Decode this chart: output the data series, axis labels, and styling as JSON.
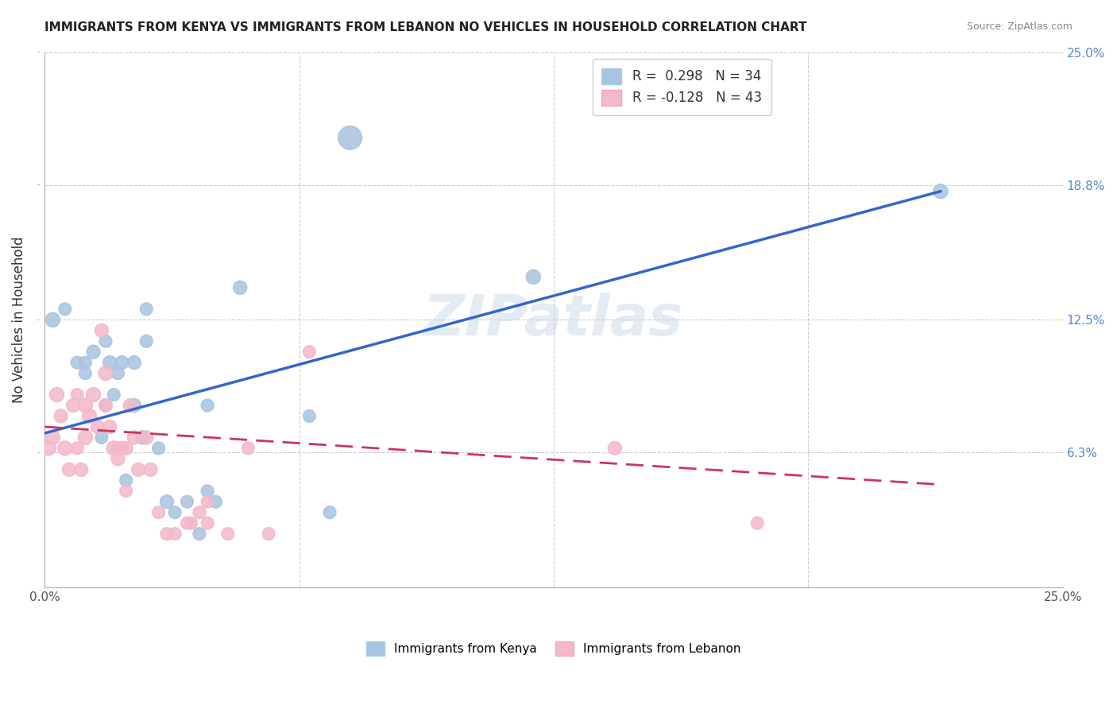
{
  "title": "IMMIGRANTS FROM KENYA VS IMMIGRANTS FROM LEBANON NO VEHICLES IN HOUSEHOLD CORRELATION CHART",
  "source": "Source: ZipAtlas.com",
  "xlabel": "",
  "ylabel": "No Vehicles in Household",
  "xmin": 0.0,
  "xmax": 0.25,
  "ymin": 0.0,
  "ymax": 0.25,
  "yticks": [
    0.0,
    0.063,
    0.125,
    0.188,
    0.25
  ],
  "ytick_labels": [
    "",
    "6.3%",
    "12.5%",
    "18.8%",
    "25.0%"
  ],
  "xtick_labels": [
    "0.0%",
    "25.0%"
  ],
  "legend_kenya": "R =  0.298   N = 34",
  "legend_lebanon": "R = -0.128   N = 43",
  "kenya_color": "#a8c4e0",
  "lebanon_color": "#f4b8c8",
  "kenya_line_color": "#3366cc",
  "lebanon_line_color": "#cc3366",
  "watermark": "ZIPatlas",
  "kenya_scatter_x": [
    0.002,
    0.005,
    0.008,
    0.01,
    0.01,
    0.012,
    0.014,
    0.015,
    0.015,
    0.016,
    0.017,
    0.018,
    0.018,
    0.019,
    0.02,
    0.022,
    0.022,
    0.024,
    0.025,
    0.025,
    0.028,
    0.03,
    0.032,
    0.035,
    0.038,
    0.04,
    0.04,
    0.042,
    0.048,
    0.065,
    0.07,
    0.075,
    0.12,
    0.22
  ],
  "kenya_scatter_y": [
    0.125,
    0.13,
    0.105,
    0.1,
    0.105,
    0.11,
    0.07,
    0.085,
    0.115,
    0.105,
    0.09,
    0.065,
    0.1,
    0.105,
    0.05,
    0.085,
    0.105,
    0.07,
    0.115,
    0.13,
    0.065,
    0.04,
    0.035,
    0.04,
    0.025,
    0.085,
    0.045,
    0.04,
    0.14,
    0.08,
    0.035,
    0.21,
    0.145,
    0.185
  ],
  "kenya_scatter_sizes": [
    80,
    60,
    60,
    60,
    60,
    70,
    60,
    60,
    60,
    70,
    60,
    60,
    60,
    70,
    60,
    70,
    70,
    70,
    60,
    60,
    60,
    70,
    60,
    60,
    60,
    60,
    60,
    60,
    70,
    60,
    60,
    220,
    80,
    80
  ],
  "lebanon_scatter_x": [
    0.001,
    0.002,
    0.003,
    0.004,
    0.005,
    0.006,
    0.007,
    0.008,
    0.008,
    0.009,
    0.01,
    0.01,
    0.011,
    0.012,
    0.013,
    0.014,
    0.015,
    0.015,
    0.016,
    0.017,
    0.018,
    0.019,
    0.02,
    0.02,
    0.021,
    0.022,
    0.023,
    0.025,
    0.026,
    0.028,
    0.03,
    0.032,
    0.035,
    0.036,
    0.038,
    0.04,
    0.04,
    0.045,
    0.05,
    0.055,
    0.065,
    0.14,
    0.175
  ],
  "lebanon_scatter_y": [
    0.065,
    0.07,
    0.09,
    0.08,
    0.065,
    0.055,
    0.085,
    0.065,
    0.09,
    0.055,
    0.07,
    0.085,
    0.08,
    0.09,
    0.075,
    0.12,
    0.085,
    0.1,
    0.075,
    0.065,
    0.06,
    0.065,
    0.045,
    0.065,
    0.085,
    0.07,
    0.055,
    0.07,
    0.055,
    0.035,
    0.025,
    0.025,
    0.03,
    0.03,
    0.035,
    0.03,
    0.04,
    0.025,
    0.065,
    0.025,
    0.11,
    0.065,
    0.03
  ],
  "lebanon_scatter_sizes": [
    80,
    80,
    80,
    70,
    80,
    70,
    70,
    60,
    60,
    70,
    80,
    80,
    80,
    80,
    70,
    70,
    70,
    80,
    70,
    80,
    70,
    70,
    60,
    70,
    70,
    70,
    70,
    70,
    70,
    60,
    60,
    60,
    60,
    60,
    60,
    60,
    60,
    60,
    60,
    60,
    60,
    70,
    60
  ],
  "kenya_line_x": [
    0.0,
    0.22
  ],
  "kenya_line_y_start": 0.072,
  "kenya_line_y_end": 0.185,
  "lebanon_line_x": [
    0.0,
    0.22
  ],
  "lebanon_line_y_start": 0.075,
  "lebanon_line_y_end": 0.048
}
